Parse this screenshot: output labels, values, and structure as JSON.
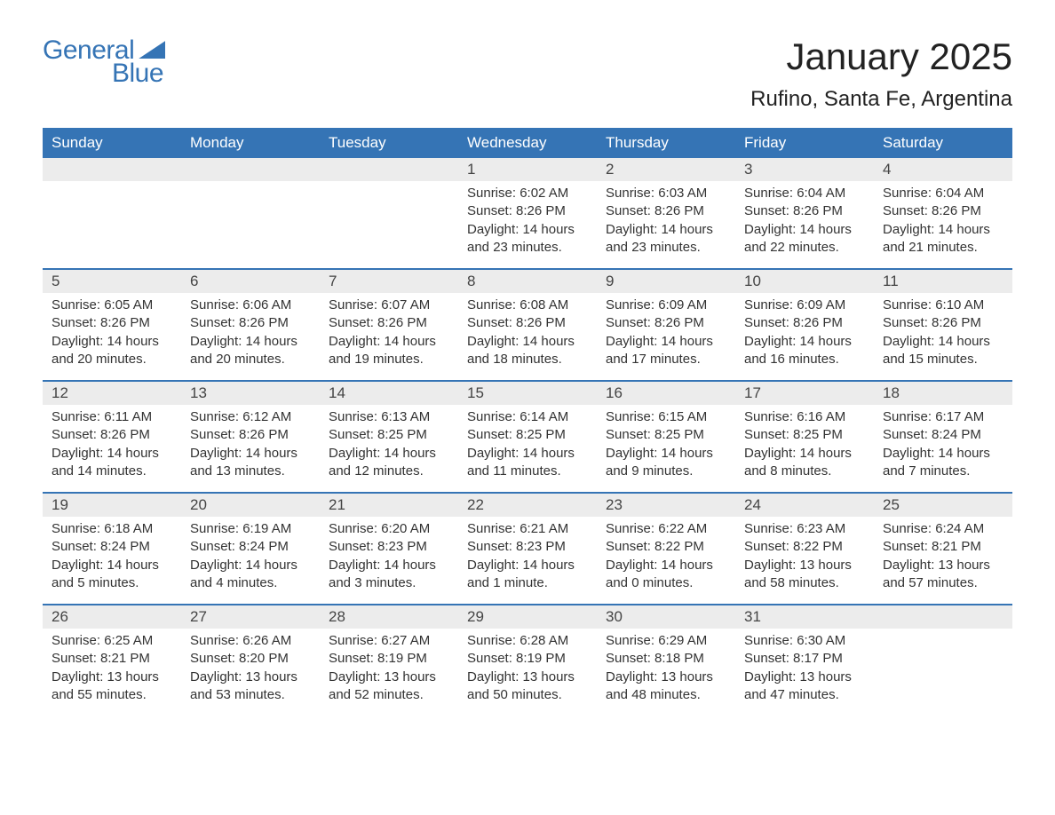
{
  "logo": {
    "text_general": "General",
    "text_blue": "Blue",
    "brand_color": "#3574b5"
  },
  "title": "January 2025",
  "location": "Rufino, Santa Fe, Argentina",
  "colors": {
    "header_bg": "#3574b5",
    "header_text": "#ffffff",
    "daynum_bg": "#ececec",
    "body_text": "#333333",
    "border": "#3574b5"
  },
  "fonts": {
    "title_size_pt": 32,
    "location_size_pt": 18,
    "weekday_size_pt": 13,
    "daynum_size_pt": 13,
    "body_size_pt": 11
  },
  "weekdays": [
    "Sunday",
    "Monday",
    "Tuesday",
    "Wednesday",
    "Thursday",
    "Friday",
    "Saturday"
  ],
  "weeks": [
    [
      null,
      null,
      null,
      {
        "day": "1",
        "sunrise": "6:02 AM",
        "sunset": "8:26 PM",
        "daylight": "14 hours and 23 minutes."
      },
      {
        "day": "2",
        "sunrise": "6:03 AM",
        "sunset": "8:26 PM",
        "daylight": "14 hours and 23 minutes."
      },
      {
        "day": "3",
        "sunrise": "6:04 AM",
        "sunset": "8:26 PM",
        "daylight": "14 hours and 22 minutes."
      },
      {
        "day": "4",
        "sunrise": "6:04 AM",
        "sunset": "8:26 PM",
        "daylight": "14 hours and 21 minutes."
      }
    ],
    [
      {
        "day": "5",
        "sunrise": "6:05 AM",
        "sunset": "8:26 PM",
        "daylight": "14 hours and 20 minutes."
      },
      {
        "day": "6",
        "sunrise": "6:06 AM",
        "sunset": "8:26 PM",
        "daylight": "14 hours and 20 minutes."
      },
      {
        "day": "7",
        "sunrise": "6:07 AM",
        "sunset": "8:26 PM",
        "daylight": "14 hours and 19 minutes."
      },
      {
        "day": "8",
        "sunrise": "6:08 AM",
        "sunset": "8:26 PM",
        "daylight": "14 hours and 18 minutes."
      },
      {
        "day": "9",
        "sunrise": "6:09 AM",
        "sunset": "8:26 PM",
        "daylight": "14 hours and 17 minutes."
      },
      {
        "day": "10",
        "sunrise": "6:09 AM",
        "sunset": "8:26 PM",
        "daylight": "14 hours and 16 minutes."
      },
      {
        "day": "11",
        "sunrise": "6:10 AM",
        "sunset": "8:26 PM",
        "daylight": "14 hours and 15 minutes."
      }
    ],
    [
      {
        "day": "12",
        "sunrise": "6:11 AM",
        "sunset": "8:26 PM",
        "daylight": "14 hours and 14 minutes."
      },
      {
        "day": "13",
        "sunrise": "6:12 AM",
        "sunset": "8:26 PM",
        "daylight": "14 hours and 13 minutes."
      },
      {
        "day": "14",
        "sunrise": "6:13 AM",
        "sunset": "8:25 PM",
        "daylight": "14 hours and 12 minutes."
      },
      {
        "day": "15",
        "sunrise": "6:14 AM",
        "sunset": "8:25 PM",
        "daylight": "14 hours and 11 minutes."
      },
      {
        "day": "16",
        "sunrise": "6:15 AM",
        "sunset": "8:25 PM",
        "daylight": "14 hours and 9 minutes."
      },
      {
        "day": "17",
        "sunrise": "6:16 AM",
        "sunset": "8:25 PM",
        "daylight": "14 hours and 8 minutes."
      },
      {
        "day": "18",
        "sunrise": "6:17 AM",
        "sunset": "8:24 PM",
        "daylight": "14 hours and 7 minutes."
      }
    ],
    [
      {
        "day": "19",
        "sunrise": "6:18 AM",
        "sunset": "8:24 PM",
        "daylight": "14 hours and 5 minutes."
      },
      {
        "day": "20",
        "sunrise": "6:19 AM",
        "sunset": "8:24 PM",
        "daylight": "14 hours and 4 minutes."
      },
      {
        "day": "21",
        "sunrise": "6:20 AM",
        "sunset": "8:23 PM",
        "daylight": "14 hours and 3 minutes."
      },
      {
        "day": "22",
        "sunrise": "6:21 AM",
        "sunset": "8:23 PM",
        "daylight": "14 hours and 1 minute."
      },
      {
        "day": "23",
        "sunrise": "6:22 AM",
        "sunset": "8:22 PM",
        "daylight": "14 hours and 0 minutes."
      },
      {
        "day": "24",
        "sunrise": "6:23 AM",
        "sunset": "8:22 PM",
        "daylight": "13 hours and 58 minutes."
      },
      {
        "day": "25",
        "sunrise": "6:24 AM",
        "sunset": "8:21 PM",
        "daylight": "13 hours and 57 minutes."
      }
    ],
    [
      {
        "day": "26",
        "sunrise": "6:25 AM",
        "sunset": "8:21 PM",
        "daylight": "13 hours and 55 minutes."
      },
      {
        "day": "27",
        "sunrise": "6:26 AM",
        "sunset": "8:20 PM",
        "daylight": "13 hours and 53 minutes."
      },
      {
        "day": "28",
        "sunrise": "6:27 AM",
        "sunset": "8:19 PM",
        "daylight": "13 hours and 52 minutes."
      },
      {
        "day": "29",
        "sunrise": "6:28 AM",
        "sunset": "8:19 PM",
        "daylight": "13 hours and 50 minutes."
      },
      {
        "day": "30",
        "sunrise": "6:29 AM",
        "sunset": "8:18 PM",
        "daylight": "13 hours and 48 minutes."
      },
      {
        "day": "31",
        "sunrise": "6:30 AM",
        "sunset": "8:17 PM",
        "daylight": "13 hours and 47 minutes."
      },
      null
    ]
  ],
  "labels": {
    "sunrise": "Sunrise:",
    "sunset": "Sunset:",
    "daylight": "Daylight:"
  }
}
